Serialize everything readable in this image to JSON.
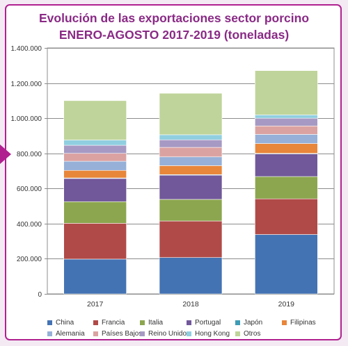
{
  "title_line1": "Evolución de las exportaciones sector porcino",
  "title_line2": "ENERO-AGOSTO 2017-2019 (toneladas)",
  "chart_data": {
    "type": "bar",
    "stacked": true,
    "title": "Evolución de las exportaciones sector porcino ENERO-AGOSTO 2017-2019 (toneladas)",
    "categories": [
      "2017",
      "2018",
      "2019"
    ],
    "ylim": [
      0,
      1400000
    ],
    "yticks": [
      "0",
      "200.000",
      "400.000",
      "600.000",
      "800.000",
      "1.000.000",
      "1.200.000",
      "1.400.000"
    ],
    "grid": true,
    "legend_position": "bottom",
    "series": [
      {
        "name": "China",
        "color": "#4473b4",
        "values": [
          198000,
          207000,
          338000
        ]
      },
      {
        "name": "Francia",
        "color": "#b04a48",
        "values": [
          204000,
          208000,
          203000
        ]
      },
      {
        "name": "Italia",
        "color": "#8ca64f",
        "values": [
          123000,
          123000,
          127000
        ]
      },
      {
        "name": "Portugal",
        "color": "#71589a",
        "values": [
          132000,
          138000,
          129000
        ]
      },
      {
        "name": "Japón",
        "color": "#3e9cb6",
        "values": [
          3000,
          3000,
          3000
        ]
      },
      {
        "name": "Filipinas",
        "color": "#e8863a",
        "values": [
          43000,
          51000,
          56000
        ]
      },
      {
        "name": "Alemania",
        "color": "#96b0d8",
        "values": [
          52000,
          50000,
          52000
        ]
      },
      {
        "name": "Países Bajos",
        "color": "#dba2a2",
        "values": [
          45000,
          54000,
          48000
        ]
      },
      {
        "name": "Reino Unido",
        "color": "#a69ac4",
        "values": [
          46000,
          43000,
          44000
        ]
      },
      {
        "name": "Hong Kong",
        "color": "#90cfe0",
        "values": [
          30000,
          29000,
          19000
        ]
      },
      {
        "name": "Otros",
        "color": "#bfd49a",
        "values": [
          224000,
          236000,
          252000
        ]
      }
    ]
  }
}
